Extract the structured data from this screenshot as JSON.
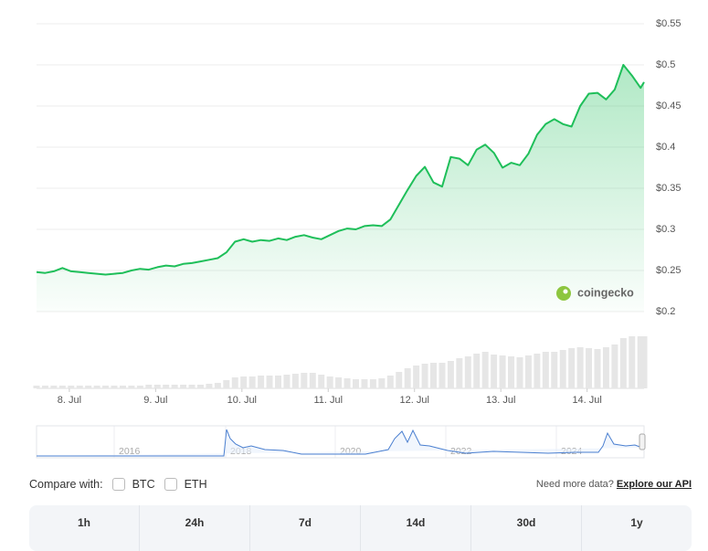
{
  "chart_data": {
    "type": "area",
    "color": "#1fbf5a",
    "x": [
      7.62,
      7.72,
      7.82,
      7.92,
      8.02,
      8.12,
      8.22,
      8.32,
      8.42,
      8.52,
      8.62,
      8.72,
      8.82,
      8.92,
      9.02,
      9.12,
      9.22,
      9.32,
      9.42,
      9.52,
      9.62,
      9.72,
      9.82,
      9.92,
      10.02,
      10.12,
      10.22,
      10.32,
      10.42,
      10.52,
      10.62,
      10.72,
      10.82,
      10.92,
      11.02,
      11.12,
      11.22,
      11.32,
      11.42,
      11.52,
      11.62,
      11.72,
      11.82,
      11.92,
      12.02,
      12.12,
      12.22,
      12.32,
      12.42,
      12.52,
      12.62,
      12.72,
      12.82,
      12.92,
      13.02,
      13.12,
      13.22,
      13.32,
      13.42,
      13.52,
      13.62,
      13.72,
      13.82,
      13.92,
      14.02,
      14.12,
      14.22,
      14.32,
      14.42,
      14.52,
      14.62,
      14.66
    ],
    "values": [
      0.248,
      0.247,
      0.249,
      0.253,
      0.249,
      0.248,
      0.247,
      0.246,
      0.245,
      0.246,
      0.247,
      0.25,
      0.252,
      0.251,
      0.254,
      0.256,
      0.255,
      0.258,
      0.259,
      0.261,
      0.263,
      0.265,
      0.272,
      0.285,
      0.288,
      0.285,
      0.287,
      0.286,
      0.289,
      0.287,
      0.291,
      0.293,
      0.29,
      0.288,
      0.293,
      0.298,
      0.301,
      0.3,
      0.304,
      0.305,
      0.304,
      0.312,
      0.33,
      0.348,
      0.365,
      0.376,
      0.357,
      0.352,
      0.388,
      0.386,
      0.378,
      0.397,
      0.403,
      0.393,
      0.375,
      0.381,
      0.378,
      0.392,
      0.415,
      0.428,
      0.434,
      0.428,
      0.425,
      0.45,
      0.465,
      0.466,
      0.458,
      0.47,
      0.5,
      0.487,
      0.472,
      0.479
    ],
    "volume": [
      3,
      3,
      3,
      3,
      3,
      3,
      3,
      3,
      3,
      3,
      3,
      3,
      3,
      4,
      4,
      4,
      4,
      4,
      4,
      4,
      5,
      6,
      9,
      12,
      13,
      13,
      14,
      14,
      14,
      15,
      16,
      17,
      17,
      15,
      13,
      12,
      11,
      10,
      10,
      10,
      11,
      14,
      18,
      22,
      25,
      27,
      28,
      28,
      30,
      33,
      35,
      38,
      40,
      37,
      36,
      35,
      34,
      36,
      38,
      40,
      40,
      42,
      44,
      45,
      44,
      43,
      45,
      48,
      55,
      57,
      57,
      57
    ],
    "xlim": [
      7.62,
      14.66
    ],
    "xticks": [
      {
        "value": 8,
        "label": "8. Jul"
      },
      {
        "value": 9,
        "label": "9. Jul"
      },
      {
        "value": 10,
        "label": "10. Jul"
      },
      {
        "value": 11,
        "label": "11. Jul"
      },
      {
        "value": 12,
        "label": "12. Jul"
      },
      {
        "value": 13,
        "label": "13. Jul"
      },
      {
        "value": 14,
        "label": "14. Jul"
      }
    ],
    "ylim": [
      0.2,
      0.55
    ],
    "yticks": [
      {
        "value": 0.2,
        "label": "$0.2"
      },
      {
        "value": 0.25,
        "label": "$0.25"
      },
      {
        "value": 0.3,
        "label": "$0.3"
      },
      {
        "value": 0.35,
        "label": "$0.35"
      },
      {
        "value": 0.4,
        "label": "$0.4"
      },
      {
        "value": 0.45,
        "label": "$0.45"
      },
      {
        "value": 0.5,
        "label": "$0.5"
      },
      {
        "value": 0.55,
        "label": "$0.55"
      }
    ],
    "grid": true,
    "watermark": "coingecko",
    "navigator_years": [
      "2016",
      "2018",
      "2020",
      "2022",
      "2024"
    ]
  },
  "compare": {
    "label": "Compare with:",
    "options": [
      "BTC",
      "ETH"
    ]
  },
  "more": {
    "text": "Need more data?",
    "link": "Explore our API"
  },
  "tabs": [
    "1h",
    "24h",
    "7d",
    "14d",
    "30d",
    "1y"
  ]
}
